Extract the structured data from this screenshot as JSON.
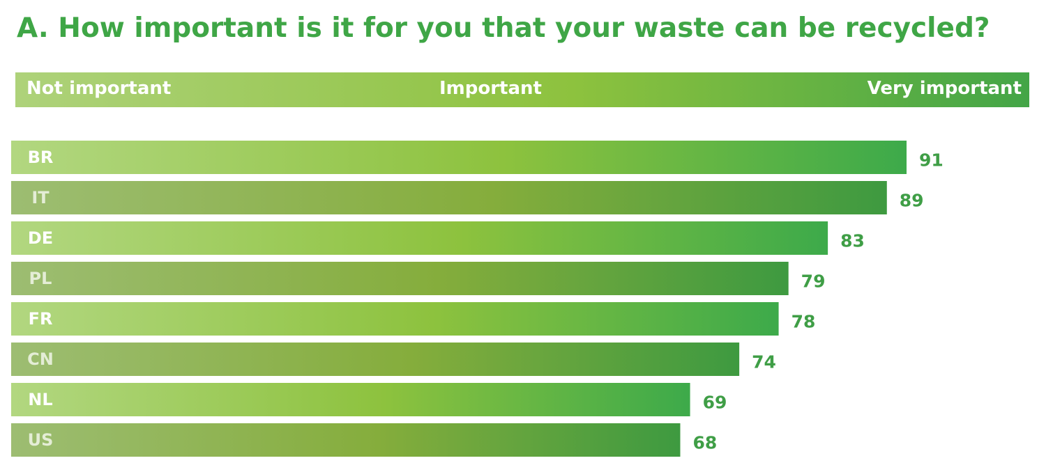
{
  "title": "A. How important is it for you that your waste can be recycled?",
  "scale": {
    "left_label": "Not important",
    "middle_label": "Important",
    "right_label": "Very important"
  },
  "colors": {
    "title": "#3fa646",
    "value_text": "#3f9e46",
    "bright_gradient": [
      "#b2d780",
      "#8dc23e",
      "#3daa4a"
    ],
    "muted_gradient": [
      "#9dbd72",
      "#85ad3c",
      "#3e9a40"
    ]
  },
  "chart_data": {
    "type": "bar",
    "orientation": "horizontal",
    "title": "A. How important is it for you that your waste can be recycled?",
    "categories": [
      "BR",
      "IT",
      "DE",
      "PL",
      "FR",
      "CN",
      "NL",
      "US"
    ],
    "values": [
      91,
      89,
      83,
      79,
      78,
      74,
      69,
      68
    ],
    "xlim": [
      0,
      100
    ],
    "grid": false,
    "legend": "none"
  }
}
